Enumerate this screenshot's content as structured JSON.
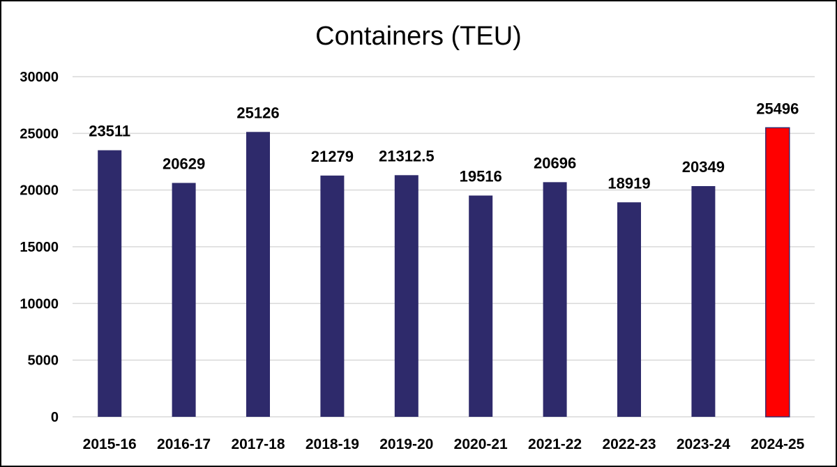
{
  "chart_data": {
    "type": "bar",
    "title": "Containers (TEU)",
    "xlabel": "",
    "ylabel": "",
    "categories": [
      "2015-16",
      "2016-17",
      "2017-18",
      "2018-19",
      "2019-20",
      "2020-21",
      "2021-22",
      "2022-23",
      "2023-24",
      "2024-25"
    ],
    "values": [
      23511,
      20629,
      25126,
      21279,
      21312.5,
      19516,
      20696,
      18919,
      20349,
      25496
    ],
    "data_labels": [
      "23511",
      "20629",
      "25126",
      "21279",
      "21312.5",
      "19516",
      "20696",
      "18919",
      "20349",
      "25496"
    ],
    "ylim": [
      0,
      30000
    ],
    "yticks": [
      0,
      5000,
      10000,
      15000,
      20000,
      25000,
      30000
    ],
    "ytick_labels": [
      "0",
      "5000",
      "10000",
      "15000",
      "20000",
      "25000",
      "30000"
    ],
    "grid": true,
    "legend": "none",
    "colors": {
      "bar": "#2e2a6b",
      "highlight": "#ff0000",
      "highlight_border": "#3b2a6b",
      "grid": "#d9d9d9"
    },
    "highlighted_category": "2024-25"
  }
}
